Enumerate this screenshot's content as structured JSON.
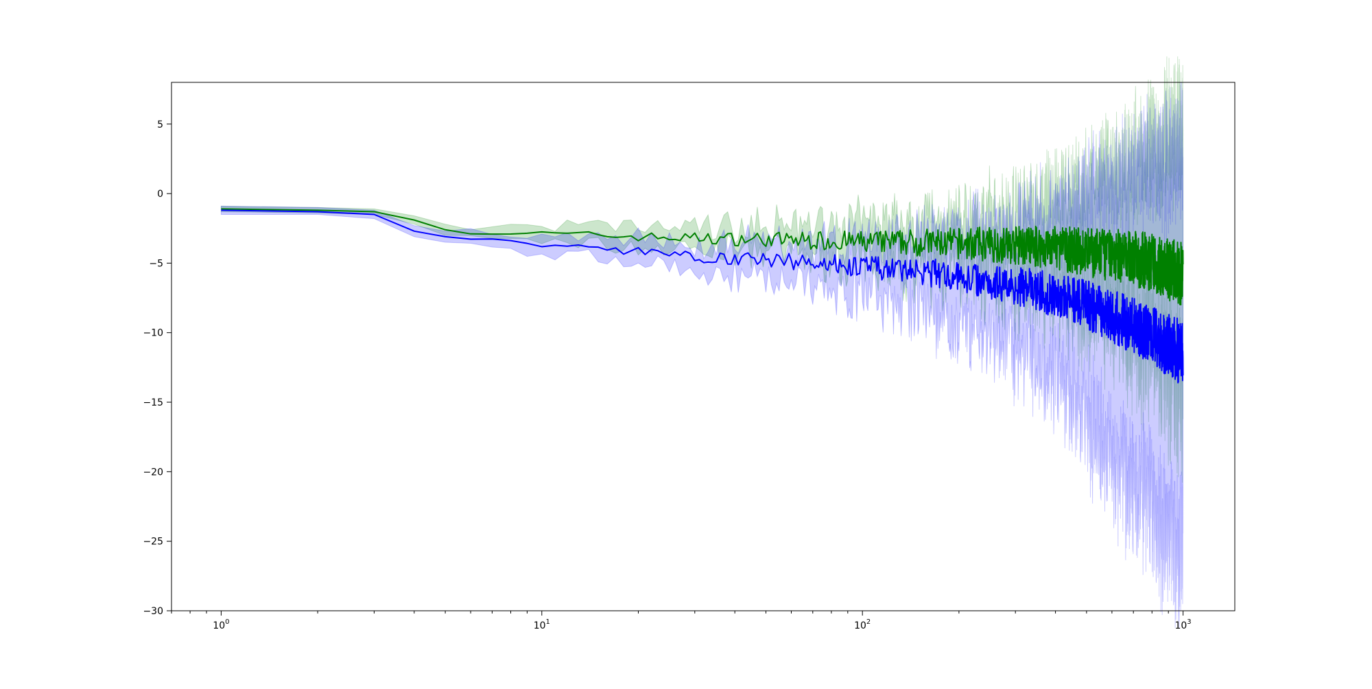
{
  "chart_data": {
    "type": "line",
    "title": "",
    "xlabel": "",
    "ylabel": "",
    "x_scale": "log",
    "xlim": [
      0.7,
      1450
    ],
    "ylim": [
      -30,
      8
    ],
    "grid": false,
    "legend": "none",
    "x_ticks": [
      {
        "base": "10",
        "exp": "0",
        "value": 1
      },
      {
        "base": "10",
        "exp": "1",
        "value": 10
      },
      {
        "base": "10",
        "exp": "2",
        "value": 100
      },
      {
        "base": "10",
        "exp": "3",
        "value": 1000
      }
    ],
    "y_ticks": [
      {
        "label": "5",
        "value": 5
      },
      {
        "label": "0",
        "value": 0
      },
      {
        "label": "−5",
        "value": -5
      },
      {
        "label": "−10",
        "value": -10
      },
      {
        "label": "−15",
        "value": -15
      },
      {
        "label": "−20",
        "value": -20
      },
      {
        "label": "−25",
        "value": -25
      },
      {
        "label": "−30",
        "value": -30
      }
    ],
    "series": [
      {
        "color": "#008000",
        "band_color": "#008000",
        "band_opacity": 0.2,
        "x": [
          1,
          2,
          3,
          4,
          5,
          7,
          10,
          15,
          20,
          30,
          50,
          80,
          100,
          150,
          200,
          300,
          400,
          500,
          700,
          1000
        ],
        "y": [
          -1.1,
          -1.2,
          -1.3,
          -1.9,
          -2.6,
          -2.8,
          -2.9,
          -3.0,
          -3.1,
          -3.2,
          -3.3,
          -3.4,
          -3.5,
          -3.5,
          -3.6,
          -3.7,
          -3.9,
          -4.2,
          -4.6,
          -5.8
        ],
        "lower": [
          -1.3,
          -1.4,
          -1.5,
          -2.2,
          -3.0,
          -3.3,
          -3.5,
          -3.7,
          -3.8,
          -4.0,
          -4.3,
          -4.6,
          -4.9,
          -5.3,
          -5.7,
          -6.3,
          -7.0,
          -8.0,
          -10.0,
          -14.0
        ],
        "upper": [
          -0.9,
          -1.0,
          -1.1,
          -1.6,
          -2.2,
          -2.3,
          -2.4,
          -2.4,
          -2.4,
          -2.4,
          -2.3,
          -2.2,
          -2.1,
          -1.8,
          -1.5,
          -1.0,
          -0.5,
          0.5,
          2.0,
          5.0
        ]
      },
      {
        "color": "#0000ff",
        "band_color": "#0000ff",
        "band_opacity": 0.2,
        "x": [
          1,
          2,
          3,
          4,
          5,
          7,
          10,
          15,
          20,
          30,
          50,
          80,
          100,
          150,
          200,
          300,
          400,
          500,
          700,
          1000
        ],
        "y": [
          -1.2,
          -1.3,
          -1.5,
          -2.7,
          -3.1,
          -3.4,
          -3.6,
          -3.9,
          -4.2,
          -4.5,
          -4.8,
          -5.0,
          -5.3,
          -5.6,
          -6.0,
          -6.6,
          -7.3,
          -8.0,
          -9.5,
          -11.5
        ],
        "lower": [
          -1.5,
          -1.5,
          -1.8,
          -3.1,
          -3.5,
          -3.9,
          -4.2,
          -4.6,
          -5.0,
          -5.5,
          -6.0,
          -6.6,
          -7.3,
          -8.4,
          -9.4,
          -11.0,
          -13.0,
          -16.0,
          -21.0,
          -26.0
        ],
        "upper": [
          -0.9,
          -1.0,
          -1.2,
          -2.3,
          -2.7,
          -2.9,
          -3.0,
          -3.2,
          -3.3,
          -3.5,
          -3.6,
          -3.5,
          -3.5,
          -3.2,
          -3.0,
          -2.4,
          -1.6,
          -0.4,
          1.5,
          3.0
        ]
      }
    ]
  }
}
